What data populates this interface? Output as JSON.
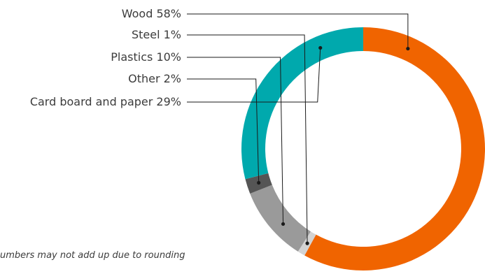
{
  "chart_data": {
    "type": "pie",
    "variant": "donut",
    "title": "",
    "categories": [
      "Wood",
      "Steel",
      "Plastics",
      "Other",
      "Card board and paper"
    ],
    "values": [
      58,
      1,
      10,
      2,
      29
    ],
    "labels": [
      "Wood 58%",
      "Steel 1%",
      "Plastics 10%",
      "Other 2%",
      "Card board and paper 29%"
    ],
    "colors": [
      "#f06400",
      "#d3d3d3",
      "#9a9a9a",
      "#555555",
      "#00a9ad"
    ],
    "legend": "leader-lines-left"
  },
  "footnote": "umbers may not add up due to rounding"
}
